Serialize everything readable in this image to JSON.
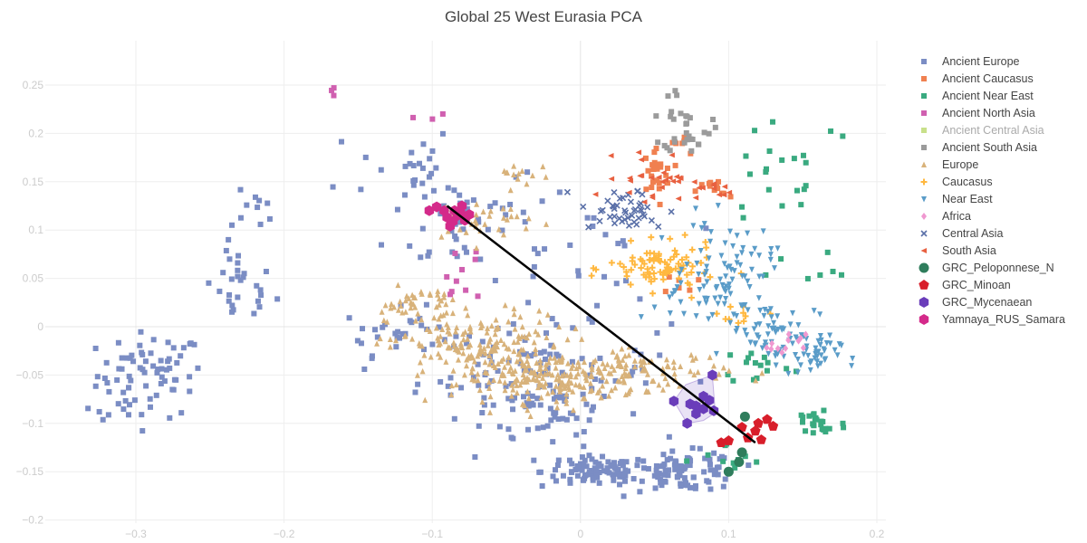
{
  "title": "Global 25 West Eurasia PCA",
  "chart_data": {
    "type": "scatter",
    "title": "Global 25 West Eurasia PCA",
    "xlabel": "",
    "ylabel": "",
    "xlim": [
      -0.36,
      0.21
    ],
    "ylim": [
      -0.205,
      0.285
    ],
    "grid": true,
    "legend_position": "right",
    "x_ticks": [
      -0.3,
      -0.2,
      -0.1,
      0,
      0.1,
      0.2
    ],
    "x_tick_labels": [
      "−0.3",
      "−0.2",
      "−0.1",
      "0",
      "0.1",
      "0.2"
    ],
    "y_ticks": [
      -0.2,
      -0.15,
      -0.1,
      -0.05,
      0,
      0.05,
      0.1,
      0.15,
      0.2,
      0.25
    ],
    "y_tick_labels": [
      "−0.2",
      "−0.15",
      "−0.1",
      "−0.05",
      "0",
      "0.05",
      "0.1",
      "0.15",
      "0.2",
      "0.25"
    ],
    "series": [
      {
        "name": "Ancient Europe",
        "symbol": "square",
        "color": "#7b8dc4",
        "clusters": [
          {
            "cx": -0.29,
            "cy": -0.05,
            "sx": 0.018,
            "sy": 0.022,
            "n": 70
          },
          {
            "cx": -0.23,
            "cy": 0.04,
            "sx": 0.012,
            "sy": 0.02,
            "n": 28
          },
          {
            "cx": -0.22,
            "cy": 0.12,
            "sx": 0.008,
            "sy": 0.01,
            "n": 10
          },
          {
            "cx": -0.32,
            "cy": -0.09,
            "sx": 0.008,
            "sy": 0.005,
            "n": 6
          },
          {
            "cx": -0.12,
            "cy": 0.17,
            "sx": 0.018,
            "sy": 0.02,
            "n": 22
          },
          {
            "cx": -0.08,
            "cy": 0.11,
            "sx": 0.025,
            "sy": 0.03,
            "n": 45
          },
          {
            "cx": -0.12,
            "cy": -0.005,
            "sx": 0.02,
            "sy": 0.012,
            "n": 30
          },
          {
            "cx": -0.03,
            "cy": -0.05,
            "sx": 0.04,
            "sy": 0.025,
            "n": 110
          },
          {
            "cx": 0.01,
            "cy": -0.15,
            "sx": 0.018,
            "sy": 0.008,
            "n": 90
          },
          {
            "cx": 0.07,
            "cy": -0.15,
            "sx": 0.018,
            "sy": 0.01,
            "n": 90
          },
          {
            "cx": -0.02,
            "cy": -0.09,
            "sx": 0.02,
            "sy": 0.012,
            "n": 30
          },
          {
            "cx": -0.01,
            "cy": 0.07,
            "sx": 0.03,
            "sy": 0.04,
            "n": 30
          }
        ]
      },
      {
        "name": "Ancient Caucasus",
        "symbol": "square",
        "color": "#f08050",
        "clusters": [
          {
            "cx": 0.05,
            "cy": 0.16,
            "sx": 0.006,
            "sy": 0.015,
            "n": 25
          },
          {
            "cx": 0.09,
            "cy": 0.14,
            "sx": 0.006,
            "sy": 0.006,
            "n": 12
          },
          {
            "cx": 0.07,
            "cy": 0.04,
            "sx": 0.006,
            "sy": 0.01,
            "n": 6
          },
          {
            "cx": 0.07,
            "cy": 0.19,
            "sx": 0.006,
            "sy": 0.006,
            "n": 6
          }
        ]
      },
      {
        "name": "Ancient Near East",
        "symbol": "square",
        "color": "#3aaa80",
        "clusters": [
          {
            "cx": 0.16,
            "cy": -0.1,
            "sx": 0.01,
            "sy": 0.01,
            "n": 25
          },
          {
            "cx": 0.12,
            "cy": -0.04,
            "sx": 0.012,
            "sy": 0.01,
            "n": 15
          },
          {
            "cx": 0.14,
            "cy": 0.17,
            "sx": 0.025,
            "sy": 0.035,
            "n": 22
          },
          {
            "cx": 0.1,
            "cy": -0.14,
            "sx": 0.015,
            "sy": 0.01,
            "n": 10
          },
          {
            "cx": 0.16,
            "cy": 0.05,
            "sx": 0.012,
            "sy": 0.015,
            "n": 6
          }
        ]
      },
      {
        "name": "Ancient North Asia",
        "symbol": "square",
        "color": "#d060b0",
        "clusters": [
          {
            "cx": -0.168,
            "cy": 0.243,
            "sx": 0.001,
            "sy": 0.004,
            "n": 3
          },
          {
            "cx": -0.1,
            "cy": 0.22,
            "sx": 0.006,
            "sy": 0.006,
            "n": 3
          },
          {
            "cx": -0.08,
            "cy": 0.06,
            "sx": 0.01,
            "sy": 0.02,
            "n": 10
          }
        ]
      },
      {
        "name": "Ancient Central Asia",
        "symbol": "square",
        "color": "#c8e08a",
        "clusters": []
      },
      {
        "name": "Ancient South Asia",
        "symbol": "square",
        "color": "#9b9b9b",
        "clusters": [
          {
            "cx": 0.072,
            "cy": 0.205,
            "sx": 0.008,
            "sy": 0.012,
            "n": 30
          },
          {
            "cx": 0.06,
            "cy": 0.24,
            "sx": 0.004,
            "sy": 0.005,
            "n": 3
          }
        ]
      },
      {
        "name": "Europe",
        "symbol": "triangle-up",
        "color": "#d8b27a",
        "clusters": [
          {
            "cx": -0.07,
            "cy": -0.02,
            "sx": 0.03,
            "sy": 0.018,
            "n": 170
          },
          {
            "cx": -0.02,
            "cy": -0.055,
            "sx": 0.03,
            "sy": 0.012,
            "n": 170
          },
          {
            "cx": 0.04,
            "cy": -0.045,
            "sx": 0.03,
            "sy": 0.01,
            "n": 90
          },
          {
            "cx": -0.11,
            "cy": 0.025,
            "sx": 0.012,
            "sy": 0.008,
            "n": 40
          },
          {
            "cx": -0.07,
            "cy": 0.11,
            "sx": 0.02,
            "sy": 0.012,
            "n": 40
          },
          {
            "cx": -0.04,
            "cy": 0.16,
            "sx": 0.01,
            "sy": 0.005,
            "n": 12
          }
        ]
      },
      {
        "name": "Caucasus",
        "symbol": "cross",
        "color": "#ffb840",
        "clusters": [
          {
            "cx": 0.055,
            "cy": 0.06,
            "sx": 0.018,
            "sy": 0.012,
            "n": 90
          },
          {
            "cx": 0.11,
            "cy": 0.015,
            "sx": 0.008,
            "sy": 0.008,
            "n": 10
          }
        ]
      },
      {
        "name": "Near East",
        "symbol": "triangle-down",
        "color": "#5a9cc8",
        "clusters": [
          {
            "cx": 0.1,
            "cy": 0.06,
            "sx": 0.015,
            "sy": 0.025,
            "n": 70
          },
          {
            "cx": 0.13,
            "cy": -0.005,
            "sx": 0.015,
            "sy": 0.015,
            "n": 60
          },
          {
            "cx": 0.155,
            "cy": -0.03,
            "sx": 0.01,
            "sy": 0.01,
            "n": 40
          },
          {
            "cx": 0.07,
            "cy": 0.03,
            "sx": 0.015,
            "sy": 0.02,
            "n": 25
          }
        ]
      },
      {
        "name": "Africa",
        "symbol": "diamond",
        "color": "#f098d0",
        "clusters": [
          {
            "cx": 0.14,
            "cy": -0.02,
            "sx": 0.006,
            "sy": 0.006,
            "n": 12
          }
        ]
      },
      {
        "name": "Central Asia",
        "symbol": "x",
        "color": "#5a70a8",
        "clusters": [
          {
            "cx": 0.03,
            "cy": 0.12,
            "sx": 0.015,
            "sy": 0.012,
            "n": 45
          }
        ]
      },
      {
        "name": "South Asia",
        "symbol": "triangle-left",
        "color": "#e86040",
        "clusters": [
          {
            "cx": 0.05,
            "cy": 0.155,
            "sx": 0.012,
            "sy": 0.012,
            "n": 28
          },
          {
            "cx": 0.09,
            "cy": 0.14,
            "sx": 0.006,
            "sy": 0.005,
            "n": 10
          }
        ]
      },
      {
        "name": "GRC_Peloponnese_N",
        "symbol": "circle",
        "color": "#2f7d5c",
        "points": [
          {
            "x": 0.111,
            "y": -0.093
          },
          {
            "x": 0.107,
            "y": -0.14
          },
          {
            "x": 0.109,
            "y": -0.13
          },
          {
            "x": 0.1,
            "y": -0.15
          }
        ]
      },
      {
        "name": "GRC_Minoan",
        "symbol": "pentagon",
        "color": "#d81e2a",
        "points": [
          {
            "x": 0.12,
            "y": -0.1
          },
          {
            "x": 0.113,
            "y": -0.115
          },
          {
            "x": 0.126,
            "y": -0.096
          },
          {
            "x": 0.118,
            "y": -0.108
          },
          {
            "x": 0.109,
            "y": -0.104
          },
          {
            "x": 0.122,
            "y": -0.117
          },
          {
            "x": 0.095,
            "y": -0.12
          },
          {
            "x": 0.1,
            "y": -0.118
          },
          {
            "x": 0.13,
            "y": -0.103
          }
        ]
      },
      {
        "name": "GRC_Mycenaean",
        "symbol": "hexagon",
        "color": "#6a3dba",
        "points": [
          {
            "x": 0.063,
            "y": -0.077
          },
          {
            "x": 0.074,
            "y": -0.08
          },
          {
            "x": 0.078,
            "y": -0.082
          },
          {
            "x": 0.083,
            "y": -0.072
          },
          {
            "x": 0.087,
            "y": -0.076
          },
          {
            "x": 0.089,
            "y": -0.05
          },
          {
            "x": 0.072,
            "y": -0.1
          },
          {
            "x": 0.083,
            "y": -0.085
          },
          {
            "x": 0.09,
            "y": -0.087
          },
          {
            "x": 0.078,
            "y": -0.09
          }
        ]
      },
      {
        "name": "Yamnaya_RUS_Samara",
        "symbol": "hexagon",
        "color": "#d42a8a",
        "points": [
          {
            "x": -0.097,
            "y": 0.124
          },
          {
            "x": -0.102,
            "y": 0.12
          },
          {
            "x": -0.092,
            "y": 0.12
          },
          {
            "x": -0.09,
            "y": 0.113
          },
          {
            "x": -0.083,
            "y": 0.115
          },
          {
            "x": -0.085,
            "y": 0.12
          },
          {
            "x": -0.088,
            "y": 0.104
          },
          {
            "x": -0.081,
            "y": 0.118
          },
          {
            "x": -0.078,
            "y": 0.11
          },
          {
            "x": -0.075,
            "y": 0.116
          },
          {
            "x": -0.08,
            "y": 0.125
          },
          {
            "x": -0.086,
            "y": 0.109
          }
        ]
      }
    ],
    "hull": {
      "color": "#6a3dba",
      "fill_opacity": 0.15,
      "points": [
        {
          "x": 0.063,
          "y": -0.077
        },
        {
          "x": 0.072,
          "y": -0.1
        },
        {
          "x": 0.083,
          "y": -0.097
        },
        {
          "x": 0.091,
          "y": -0.089
        },
        {
          "x": 0.089,
          "y": -0.05
        },
        {
          "x": 0.071,
          "y": -0.06
        }
      ]
    },
    "line": {
      "color": "#000000",
      "points": [
        {
          "x": -0.09,
          "y": 0.125
        },
        {
          "x": 0.118,
          "y": -0.12
        }
      ]
    }
  }
}
